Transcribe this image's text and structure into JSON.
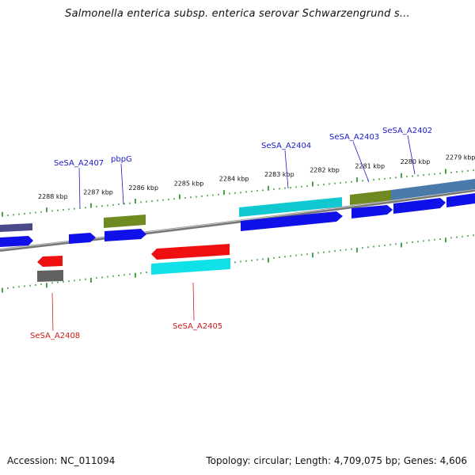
{
  "title": "Salmonella enterica subsp. enterica serovar Schwarzengrund s...",
  "footer": {
    "accession": "Accession: NC_011094",
    "summary": "Topology: circular; Length: 4,709,075 bp; Genes: 4,606"
  },
  "colors": {
    "forward_label": "#1a1acc",
    "reverse_label": "#cc1a1a",
    "cds_forward": "#1010e8",
    "cds_reverse": "#ee1010",
    "rna_cyan": "#10d0d8",
    "olive": "#6e8a20",
    "steel": "#4a7aaa",
    "gray": "#606060",
    "tick": "#1a8a1a"
  },
  "ticks": [
    {
      "label": "2288 kbp"
    },
    {
      "label": "2287 kbp"
    },
    {
      "label": "2286 kbp"
    },
    {
      "label": "2285 kbp"
    },
    {
      "label": "2284 kbp"
    },
    {
      "label": "2283 kbp"
    },
    {
      "label": "2282 kbp"
    },
    {
      "label": "2281 kbp"
    },
    {
      "label": "2280 kbp"
    },
    {
      "label": "2279 kbp"
    }
  ],
  "gene_labels": [
    {
      "text": "SeSA_A2407",
      "strand": "forward"
    },
    {
      "text": "pbpG",
      "strand": "forward"
    },
    {
      "text": "SeSA_A2404",
      "strand": "forward"
    },
    {
      "text": "SeSA_A2403",
      "strand": "forward"
    },
    {
      "text": "SeSA_A2402",
      "strand": "forward"
    },
    {
      "text": "SeSA_A2408",
      "strand": "reverse"
    },
    {
      "text": "SeSA_A2405",
      "strand": "reverse"
    }
  ]
}
